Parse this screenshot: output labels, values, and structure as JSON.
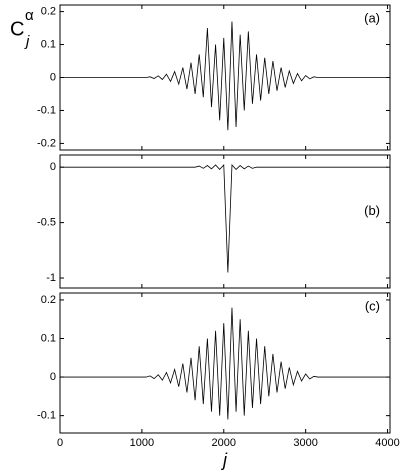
{
  "y_label": {
    "base": "C",
    "sup": "α",
    "sub": "j"
  },
  "chart_data": [
    {
      "type": "line",
      "label": "(a)",
      "color": "#000000",
      "xlim": [
        0,
        4030
      ],
      "ylim": [
        -0.22,
        0.22
      ],
      "yticks": [
        -0.2,
        -0.1,
        0,
        0.1,
        0.2
      ],
      "xticks": [
        0,
        1000,
        2000,
        3000,
        4000
      ],
      "xtick_labels": false,
      "x": [
        0,
        50,
        100,
        150,
        200,
        250,
        300,
        350,
        400,
        450,
        500,
        550,
        600,
        650,
        700,
        750,
        800,
        850,
        900,
        950,
        1000,
        1050,
        1100,
        1150,
        1200,
        1250,
        1300,
        1350,
        1400,
        1450,
        1500,
        1550,
        1600,
        1650,
        1700,
        1750,
        1800,
        1850,
        1900,
        1950,
        2000,
        2050,
        2100,
        2150,
        2200,
        2250,
        2300,
        2350,
        2400,
        2450,
        2500,
        2550,
        2600,
        2650,
        2700,
        2750,
        2800,
        2850,
        2900,
        2950,
        3000,
        3050,
        3100,
        3150,
        3200,
        3250,
        3300,
        3350,
        3400,
        3450,
        3500,
        3550,
        3600,
        3650,
        3700,
        3750,
        3800,
        3850,
        3900,
        3950,
        4000
      ],
      "values": [
        0,
        0,
        0,
        0,
        0,
        0,
        0,
        0,
        0,
        0,
        0,
        0,
        0,
        0,
        0,
        0,
        0,
        0,
        0,
        0,
        0,
        0,
        0.002,
        -0.003,
        0.005,
        -0.006,
        0.01,
        -0.012,
        0.018,
        -0.02,
        0.03,
        -0.035,
        0.045,
        -0.05,
        0.07,
        -0.06,
        0.15,
        -0.09,
        0.1,
        -0.13,
        0.12,
        -0.16,
        0.17,
        -0.15,
        0.13,
        -0.1,
        0.14,
        -0.08,
        0.07,
        -0.07,
        0.06,
        -0.05,
        0.05,
        -0.04,
        0.03,
        -0.03,
        0.02,
        -0.018,
        0.012,
        -0.01,
        0.006,
        -0.004,
        0.002,
        0,
        0,
        0,
        0,
        0,
        0,
        0,
        0,
        0,
        0,
        0,
        0,
        0,
        0,
        0,
        0,
        0,
        0
      ]
    },
    {
      "type": "line",
      "label": "(b)",
      "color": "#000000",
      "xlim": [
        0,
        4030
      ],
      "ylim": [
        -1.09,
        0.11
      ],
      "yticks": [
        -1,
        -0.5,
        0
      ],
      "xticks": [
        0,
        1000,
        2000,
        3000,
        4000
      ],
      "xtick_labels": false,
      "x": [
        0,
        50,
        100,
        150,
        200,
        250,
        300,
        350,
        400,
        450,
        500,
        550,
        600,
        650,
        700,
        750,
        800,
        850,
        900,
        950,
        1000,
        1050,
        1100,
        1150,
        1200,
        1250,
        1300,
        1350,
        1400,
        1450,
        1500,
        1550,
        1600,
        1650,
        1700,
        1750,
        1800,
        1850,
        1900,
        1950,
        2000,
        2050,
        2100,
        2150,
        2200,
        2250,
        2300,
        2350,
        2400,
        2450,
        2500,
        2550,
        2600,
        2650,
        2700,
        2750,
        2800,
        2850,
        2900,
        2950,
        3000,
        3050,
        3100,
        3150,
        3200,
        3250,
        3300,
        3350,
        3400,
        3450,
        3500,
        3550,
        3600,
        3650,
        3700,
        3750,
        3800,
        3850,
        3900,
        3950,
        4000
      ],
      "values": [
        0,
        0,
        0,
        0,
        0,
        0,
        0,
        0,
        0,
        0,
        0,
        0,
        0,
        0,
        0,
        0,
        0,
        0,
        0,
        0,
        0,
        0,
        0,
        0,
        0,
        0,
        0,
        0,
        0,
        0,
        0,
        0,
        0,
        0,
        0.01,
        -0.01,
        0.015,
        -0.015,
        0.02,
        -0.02,
        0.02,
        -0.95,
        0.02,
        -0.02,
        0.015,
        -0.015,
        0.01,
        -0.01,
        0,
        0,
        0,
        0,
        0,
        0,
        0,
        0,
        0,
        0,
        0,
        0,
        0,
        0,
        0,
        0,
        0,
        0,
        0,
        0,
        0,
        0,
        0,
        0,
        0,
        0,
        0,
        0,
        0,
        0,
        0,
        0,
        0
      ]
    },
    {
      "type": "line",
      "label": "(c)",
      "color": "#000000",
      "xlim": [
        0,
        4030
      ],
      "ylim": [
        -0.145,
        0.218
      ],
      "yticks": [
        -0.1,
        0,
        0.1,
        0.2
      ],
      "xticks": [
        0,
        1000,
        2000,
        3000,
        4000
      ],
      "xtick_labels": true,
      "x_label": "j",
      "x": [
        0,
        50,
        100,
        150,
        200,
        250,
        300,
        350,
        400,
        450,
        500,
        550,
        600,
        650,
        700,
        750,
        800,
        850,
        900,
        950,
        1000,
        1050,
        1100,
        1150,
        1200,
        1250,
        1300,
        1350,
        1400,
        1450,
        1500,
        1550,
        1600,
        1650,
        1700,
        1750,
        1800,
        1850,
        1900,
        1950,
        2000,
        2050,
        2100,
        2150,
        2200,
        2250,
        2300,
        2350,
        2400,
        2450,
        2500,
        2550,
        2600,
        2650,
        2700,
        2750,
        2800,
        2850,
        2900,
        2950,
        3000,
        3050,
        3100,
        3150,
        3200,
        3250,
        3300,
        3350,
        3400,
        3450,
        3500,
        3550,
        3600,
        3650,
        3700,
        3750,
        3800,
        3850,
        3900,
        3950,
        4000
      ],
      "values": [
        0,
        0,
        0,
        0,
        0,
        0,
        0,
        0,
        0,
        0,
        0,
        0,
        0,
        0,
        0,
        0,
        0,
        0,
        0,
        0,
        0,
        0,
        0.003,
        -0.004,
        0.006,
        -0.008,
        0.012,
        -0.015,
        0.02,
        -0.025,
        0.035,
        -0.04,
        0.05,
        -0.06,
        0.08,
        -0.07,
        0.1,
        -0.09,
        0.12,
        -0.1,
        0.14,
        -0.11,
        0.18,
        -0.09,
        0.15,
        -0.1,
        0.12,
        -0.08,
        0.1,
        -0.07,
        0.08,
        -0.05,
        0.06,
        -0.04,
        0.04,
        -0.03,
        0.025,
        -0.02,
        0.015,
        -0.01,
        0.008,
        -0.005,
        0.002,
        0,
        0,
        0,
        0,
        0,
        0,
        0,
        0,
        0,
        0,
        0,
        0,
        0,
        0,
        0,
        0,
        0,
        0
      ]
    }
  ]
}
